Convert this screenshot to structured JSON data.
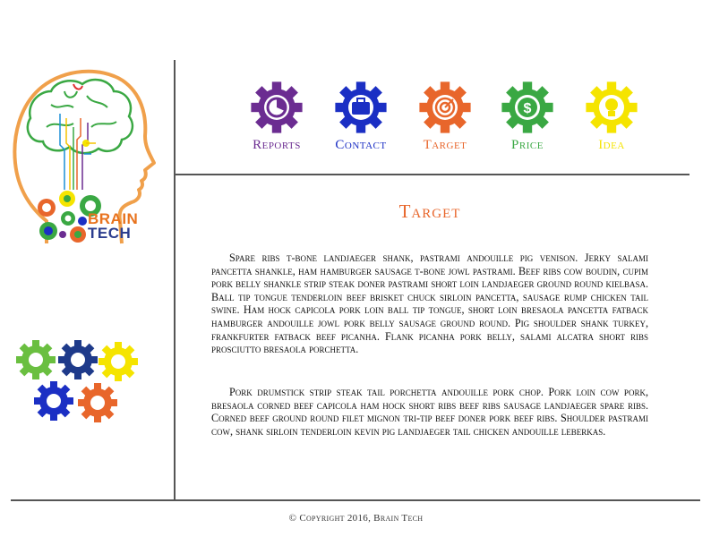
{
  "brand": {
    "line1": "BRAIN",
    "line2": "TECH"
  },
  "nav": {
    "items": [
      {
        "label": "Reports",
        "color": "#6b2c91",
        "icon": "pie-chart-icon"
      },
      {
        "label": "Contact",
        "color": "#1b2fc4",
        "icon": "briefcase-icon"
      },
      {
        "label": "Target",
        "color": "#e8662b",
        "icon": "target-icon"
      },
      {
        "label": "Price",
        "color": "#3aa843",
        "icon": "dollar-icon"
      },
      {
        "label": "Idea",
        "color": "#f5e400",
        "icon": "lightbulb-icon"
      }
    ]
  },
  "main": {
    "title": "Target",
    "paragraphs": [
      "Spare ribs t-bone landjaeger shank, pastrami andouille pig venison. Jerky salami pancetta shankle, ham hamburger sausage t-bone jowl pastrami. Beef ribs cow boudin, cupim pork belly shankle strip steak doner pastrami short loin landjaeger ground round kielbasa. Ball tip tongue tenderloin beef brisket chuck sirloin pancetta, sausage rump chicken tail swine. Ham hock capicola pork loin ball tip tongue, short loin bresaola pancetta fatback hamburger andouille jowl pork belly sausage ground round. Pig shoulder shank turkey, frankfurter fatback beef picanha. Flank picanha pork belly, salami alcatra short ribs prosciutto bresaola porchetta.",
      "Pork drumstick strip steak tail porchetta andouille pork chop. Pork loin cow pork, bresaola corned beef capicola ham hock short ribs beef ribs sausage landjaeger spare ribs. Corned beef ground round filet mignon tri-tip beef doner pork beef ribs. Shoulder pastrami cow, shank sirloin tenderloin kevin pig landjaeger tail chicken andouille leberkas."
    ]
  },
  "footer": {
    "text": "© Copyright 2016, Brain Tech"
  },
  "colors": {
    "accent": "#e8662b",
    "divider": "#555555"
  }
}
